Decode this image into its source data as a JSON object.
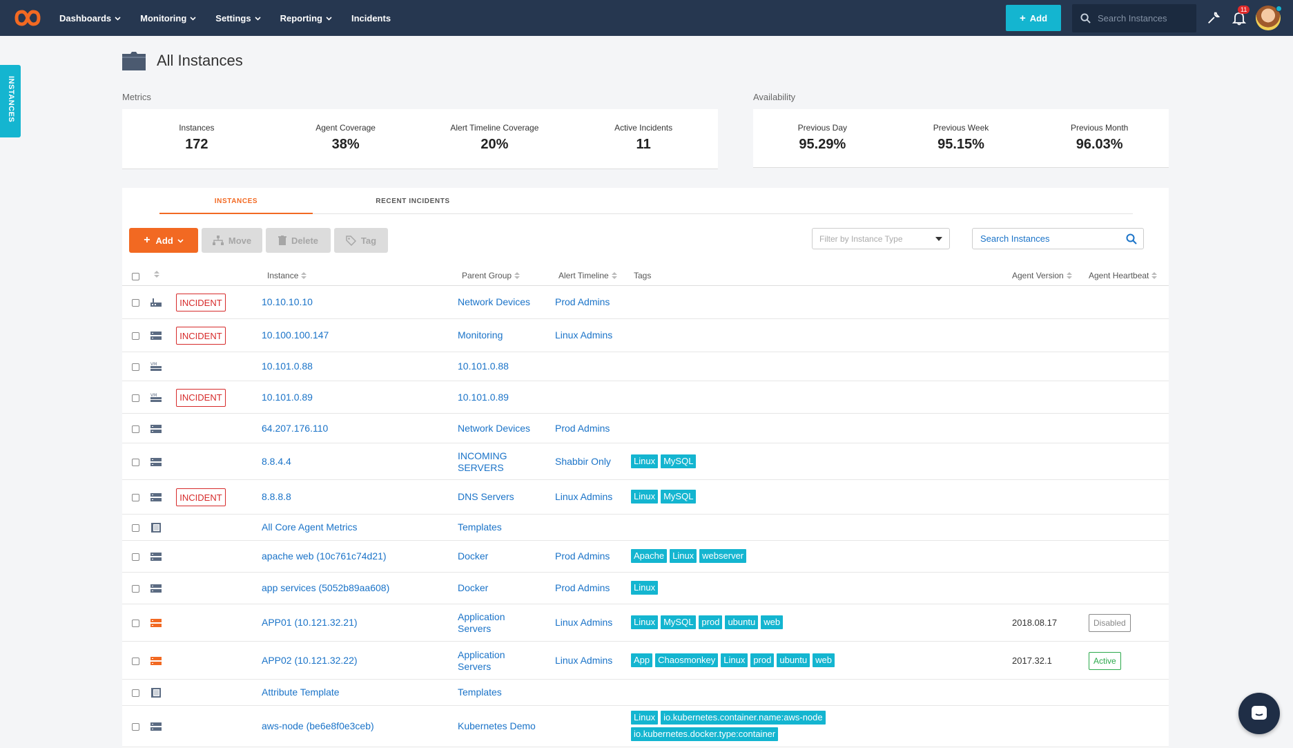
{
  "nav": {
    "items": [
      {
        "label": "Dashboards",
        "has_caret": true
      },
      {
        "label": "Monitoring",
        "has_caret": true
      },
      {
        "label": "Settings",
        "has_caret": true
      },
      {
        "label": "Reporting",
        "has_caret": true
      },
      {
        "label": "Incidents",
        "has_caret": false
      }
    ],
    "add_label": "Add",
    "search_placeholder": "Search Instances",
    "notification_count": "11"
  },
  "side_tab": {
    "label": "INSTANCES"
  },
  "page": {
    "title": "All Instances"
  },
  "metrics": {
    "label": "Metrics",
    "items": [
      {
        "label": "Instances",
        "value": "172"
      },
      {
        "label": "Agent Coverage",
        "value": "38%"
      },
      {
        "label": "Alert Timeline Coverage",
        "value": "20%"
      },
      {
        "label": "Active Incidents",
        "value": "11"
      }
    ]
  },
  "availability": {
    "label": "Availability",
    "items": [
      {
        "label": "Previous Day",
        "value": "95.29%"
      },
      {
        "label": "Previous Week",
        "value": "95.15%"
      },
      {
        "label": "Previous Month",
        "value": "96.03%"
      }
    ]
  },
  "tabs": {
    "instances": "INSTANCES",
    "recent_incidents": "RECENT INCIDENTS"
  },
  "toolbar": {
    "add_label": "Add",
    "move_label": "Move",
    "delete_label": "Delete",
    "tag_label": "Tag",
    "filter_placeholder": "Filter by Instance Type",
    "search_placeholder": "Search Instances"
  },
  "table": {
    "headers": {
      "instance": "Instance",
      "parent_group": "Parent Group",
      "alert_timeline": "Alert Timeline",
      "tags": "Tags",
      "agent_version": "Agent Version",
      "agent_heartbeat": "Agent Heartbeat"
    },
    "incident_label": "INCIDENT",
    "rows": [
      {
        "icon": "network-device-icon",
        "incident": true,
        "instance": "10.10.10.10",
        "group": "Network Devices",
        "alert": "Prod Admins",
        "tags": [],
        "version": "",
        "heartbeat": ""
      },
      {
        "icon": "server-icon",
        "incident": true,
        "instance": "10.100.100.147",
        "group": "Monitoring",
        "alert": "Linux Admins",
        "tags": [],
        "version": "",
        "heartbeat": ""
      },
      {
        "icon": "vm-server-icon",
        "incident": false,
        "instance": "10.101.0.88",
        "group": "10.101.0.88",
        "alert": "",
        "tags": [],
        "version": "",
        "heartbeat": ""
      },
      {
        "icon": "vm-server-icon",
        "incident": true,
        "instance": "10.101.0.89",
        "group": "10.101.0.89",
        "alert": "",
        "tags": [],
        "version": "",
        "heartbeat": ""
      },
      {
        "icon": "server-icon",
        "incident": false,
        "instance": "64.207.176.110",
        "group": "Network Devices",
        "alert": "Prod Admins",
        "tags": [],
        "version": "",
        "heartbeat": ""
      },
      {
        "icon": "server-icon",
        "incident": false,
        "instance": "8.8.4.4",
        "group": "INCOMING SERVERS",
        "alert": "Shabbir Only",
        "tags": [
          "Linux",
          "MySQL"
        ],
        "version": "",
        "heartbeat": ""
      },
      {
        "icon": "server-icon",
        "incident": true,
        "instance": "8.8.8.8",
        "group": "DNS Servers",
        "alert": "Linux Admins",
        "tags": [
          "Linux",
          "MySQL"
        ],
        "version": "",
        "heartbeat": ""
      },
      {
        "icon": "template-icon",
        "incident": false,
        "instance": "All Core Agent Metrics",
        "group": "Templates",
        "alert": "",
        "tags": [],
        "version": "",
        "heartbeat": ""
      },
      {
        "icon": "server-icon",
        "incident": false,
        "instance": "apache web (10c761c74d21)",
        "group": "Docker",
        "alert": "Prod Admins",
        "tags": [
          "Apache",
          "Linux",
          "webserver"
        ],
        "version": "",
        "heartbeat": ""
      },
      {
        "icon": "server-icon",
        "incident": false,
        "instance": "app services (5052b89aa608)",
        "group": "Docker",
        "alert": "Prod Admins",
        "tags": [
          "Linux"
        ],
        "version": "",
        "heartbeat": ""
      },
      {
        "icon": "agent-server-icon",
        "incident": false,
        "instance": "APP01 (10.121.32.21)",
        "group": "Application Servers",
        "alert": "Linux Admins",
        "tags": [
          "Linux",
          "MySQL",
          "prod",
          "ubuntu",
          "web"
        ],
        "version": "2018.08.17",
        "heartbeat": "Disabled"
      },
      {
        "icon": "agent-server-icon",
        "incident": false,
        "instance": "APP02 (10.121.32.22)",
        "group": "Application Servers",
        "alert": "Linux Admins",
        "tags": [
          "App",
          "Chaosmonkey",
          "Linux",
          "prod",
          "ubuntu",
          "web"
        ],
        "version": "2017.32.1",
        "heartbeat": "Active"
      },
      {
        "icon": "template-icon",
        "incident": false,
        "instance": "Attribute Template",
        "group": "Templates",
        "alert": "",
        "tags": [],
        "version": "",
        "heartbeat": ""
      },
      {
        "icon": "server-icon",
        "incident": false,
        "instance": "aws-node (be6e8f0e3ceb)",
        "group": "Kubernetes Demo",
        "alert": "",
        "tags": [
          "Linux",
          "io.kubernetes.container.name:aws-node",
          "io.kubernetes.docker.type:container"
        ],
        "version": "",
        "heartbeat": ""
      }
    ]
  }
}
